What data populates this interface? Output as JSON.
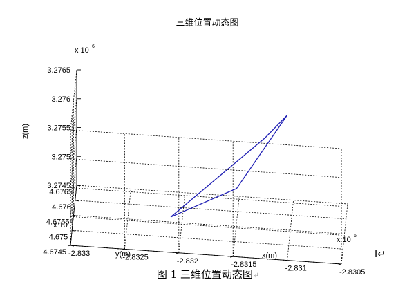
{
  "figure": {
    "caption": "图 1  三维位置动态图",
    "caption_return_mark": "↵",
    "cursor_mark": "I↵"
  },
  "chart_data": {
    "type": "line3d",
    "title": "三维位置动态图",
    "xlabel": "x(m)",
    "ylabel": "y(m)",
    "zlabel": "z(m)",
    "x_multiplier": "x 10",
    "y_multiplier": "x 10",
    "z_multiplier": "x 10",
    "multiplier_exponent": "6",
    "xlim": [
      -2.833,
      -2.8305
    ],
    "ylim": [
      4.6745,
      4.6765
    ],
    "zlim": [
      3.2745,
      3.2765
    ],
    "x_ticks": [
      "-2.833",
      "-2.8325",
      "-2.832",
      "-2.8315",
      "-2.831",
      "-2.8305"
    ],
    "y_ticks": [
      "4.6745",
      "4.675",
      "4.6755",
      "4.676",
      "4.6765"
    ],
    "z_ticks": [
      "3.2745",
      "3.275",
      "3.2755",
      "3.276",
      "3.2765"
    ],
    "grid": true,
    "line_color": "#1f1fb4",
    "series": [
      {
        "x": [
          -2.8321,
          -2.83125,
          -2.83105,
          -2.8315,
          -2.8321
        ],
        "y": [
          4.67538,
          4.67605,
          4.6762,
          4.67565,
          4.67538
        ],
        "z": [
          3.27465,
          3.27578,
          3.27612,
          3.27508,
          3.27465
        ]
      }
    ]
  }
}
